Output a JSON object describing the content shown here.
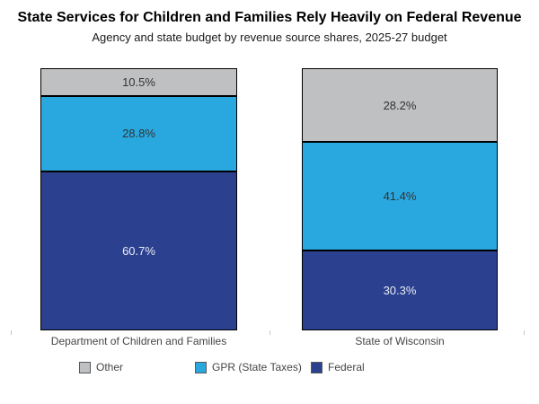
{
  "chart_data": {
    "type": "bar",
    "stacked": true,
    "orientation": "vertical",
    "title": "State Services for Children and Families Rely Heavily on Federal Revenue",
    "subtitle": "Agency and state budget by revenue source shares, 2025-27 budget",
    "categories": [
      "Department of Children and Families",
      "State of Wisconsin"
    ],
    "series": [
      {
        "name": "Other",
        "color": "#bfc0c2",
        "label_color": "#333333",
        "values": [
          10.5,
          28.2
        ]
      },
      {
        "name": "GPR (State Taxes)",
        "color": "#29a8e0",
        "label_color": "#333333",
        "values": [
          28.8,
          41.4
        ]
      },
      {
        "name": "Federal",
        "color": "#2b418f",
        "label_color": "#eaecf4",
        "values": [
          60.7,
          30.3
        ]
      }
    ],
    "value_unit": "%",
    "stack_order": "top-to-bottom",
    "ylim": [
      0,
      100
    ],
    "grid": false,
    "legend_position": "bottom",
    "axis_tick_color": "#c9c9c9",
    "segment_border_color": "#000000"
  }
}
